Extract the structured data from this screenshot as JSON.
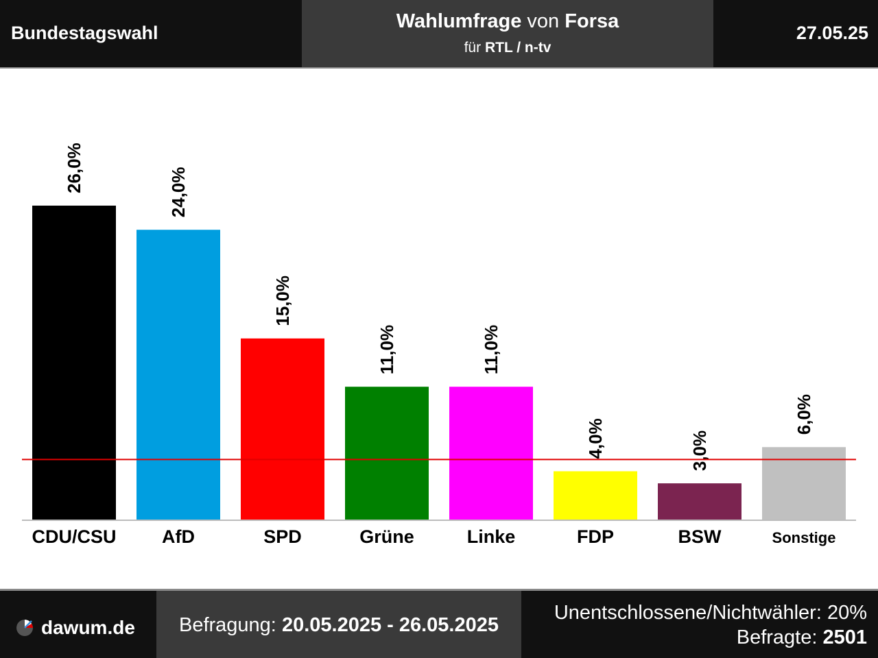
{
  "header": {
    "left_title": "Bundestagswahl",
    "title_main": "Wahlumfrage",
    "title_connector": "von",
    "title_institute": "Forsa",
    "subtitle_prefix": "für",
    "subtitle_client": "RTL / n-tv",
    "date": "27.05.25"
  },
  "chart_data": {
    "type": "bar",
    "categories": [
      "CDU/CSU",
      "AfD",
      "SPD",
      "Grüne",
      "Linke",
      "FDP",
      "BSW",
      "Sonstige"
    ],
    "values": [
      26.0,
      24.0,
      15.0,
      11.0,
      11.0,
      4.0,
      3.0,
      6.0
    ],
    "value_labels": [
      "26,0%",
      "24,0%",
      "15,0%",
      "11,0%",
      "11,0%",
      "4,0%",
      "3,0%",
      "6,0%"
    ],
    "colors": [
      "#000000",
      "#009ee0",
      "#ff0000",
      "#008000",
      "#ff00ff",
      "#ffff00",
      "#7b2450",
      "#c0c0c0"
    ],
    "threshold": 5.0,
    "threshold_color": "#e00000",
    "ylim": [
      0,
      26
    ],
    "grid": false,
    "legend": "none"
  },
  "footer": {
    "site": "dawum.de",
    "survey_label": "Befragung:",
    "survey_period": "20.05.2025 - 26.05.2025",
    "undecided": "Unentschlossene/Nichtwähler: 20%",
    "respondents_label": "Befragte:",
    "respondents": "2501"
  }
}
